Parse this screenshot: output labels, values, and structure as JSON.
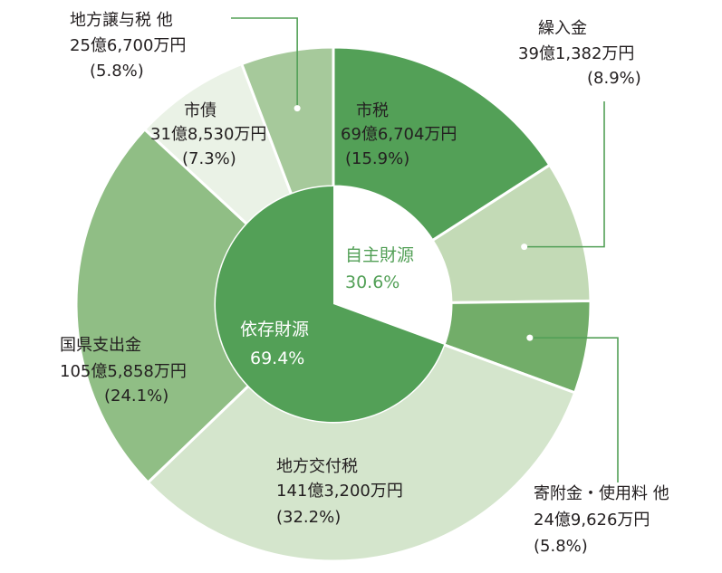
{
  "chart_data": {
    "type": "pie",
    "outer_ring": [
      {
        "name": "市税",
        "amount": "69億6,704万円",
        "percent_label": "(15.9%)",
        "value": 15.9,
        "color": "#53a057",
        "label_color": "#231f20"
      },
      {
        "name": "繰入金",
        "amount": "39億1,382万円",
        "percent_label": "(8.9%)",
        "value": 8.9,
        "color": "#c3dab6",
        "label_color": "#231f20"
      },
      {
        "name": "寄附金・使用料 他",
        "amount": "24億9,626万円",
        "percent_label": "(5.8%)",
        "value": 5.8,
        "color": "#72ad69",
        "label_color": "#231f20"
      },
      {
        "name": "地方交付税",
        "amount": "141億3,200万円",
        "percent_label": "(32.2%)",
        "value": 32.2,
        "color": "#d4e5cc",
        "label_color": "#231f20"
      },
      {
        "name": "国県支出金",
        "amount": "105億5,858万円",
        "percent_label": "(24.1%)",
        "value": 24.1,
        "color": "#90be85",
        "label_color": "#231f20"
      },
      {
        "name": "市債",
        "amount": "31億8,530万円",
        "percent_label": "(7.3%)",
        "value": 7.3,
        "color": "#eaf2e6",
        "label_color": "#231f20"
      },
      {
        "name": "地方譲与税 他",
        "amount": "25億6,700万円",
        "percent_label": "(5.8%)",
        "value": 5.8,
        "color": "#a6c99b",
        "label_color": "#231f20"
      }
    ],
    "inner_ring": [
      {
        "name": "自主財源",
        "percent_label": "30.6%",
        "value": 30.6,
        "color": "#ffffff",
        "text_color": "#53a057"
      },
      {
        "name": "依存財源",
        "percent_label": "69.4%",
        "value": 69.4,
        "color": "#53a057",
        "text_color": "#ffffff"
      }
    ]
  }
}
